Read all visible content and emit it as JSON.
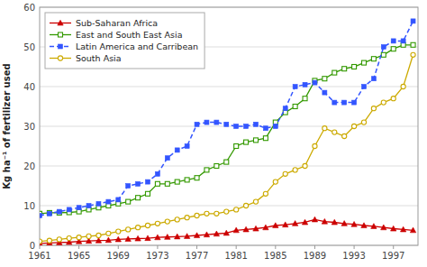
{
  "chart_data": {
    "type": "line",
    "y_label": "Kg ha⁻¹ of fertilizer used",
    "x": [
      1961,
      1962,
      1963,
      1964,
      1965,
      1966,
      1967,
      1968,
      1969,
      1970,
      1971,
      1972,
      1973,
      1974,
      1975,
      1976,
      1977,
      1978,
      1979,
      1980,
      1981,
      1982,
      1983,
      1984,
      1985,
      1986,
      1987,
      1988,
      1989,
      1990,
      1991,
      1992,
      1993,
      1994,
      1995,
      1996,
      1997,
      1998,
      1999
    ],
    "xlim": [
      1961,
      1999.5
    ],
    "xticks": [
      1961,
      1965,
      1969,
      1973,
      1977,
      1981,
      1985,
      1989,
      1993,
      1997
    ],
    "ylim": [
      0,
      60
    ],
    "yticks": [
      0,
      10,
      20,
      30,
      40,
      50,
      60
    ],
    "grid": true,
    "legend": "upper left",
    "series": [
      {
        "name": "Sub-Saharan Africa",
        "color": "#cc0000",
        "marker": "triangle",
        "line_style": "solid",
        "values": [
          0.5,
          0.6,
          0.7,
          0.8,
          1.0,
          1.1,
          1.2,
          1.3,
          1.5,
          1.6,
          1.7,
          1.8,
          2.0,
          2.1,
          2.2,
          2.3,
          2.5,
          2.7,
          2.9,
          3.1,
          3.8,
          4.0,
          4.2,
          4.5,
          5.0,
          5.2,
          5.5,
          5.8,
          6.5,
          6.0,
          5.8,
          5.5,
          5.3,
          5.0,
          4.8,
          4.5,
          4.2,
          4.0,
          3.8
        ]
      },
      {
        "name": "East and South East Asia",
        "color": "#339900",
        "marker": "square-open",
        "line_style": "solid",
        "values": [
          8.0,
          8.2,
          8.2,
          8.3,
          8.5,
          9.0,
          9.5,
          10.0,
          10.5,
          11.0,
          12.0,
          13.0,
          15.5,
          15.5,
          16.0,
          16.5,
          17.0,
          19.0,
          20.0,
          21.0,
          25.0,
          26.0,
          26.5,
          27.0,
          31.0,
          33.5,
          35.0,
          37.0,
          41.5,
          42.0,
          43.5,
          44.5,
          45.0,
          46.0,
          47.0,
          48.0,
          49.5,
          50.5,
          50.5
        ]
      },
      {
        "name": "Latin America and Carribean",
        "color": "#3355ff",
        "marker": "square",
        "line_style": "dashed",
        "values": [
          7.5,
          8.0,
          8.5,
          9.0,
          9.5,
          10.0,
          10.5,
          11.0,
          11.5,
          15.0,
          15.5,
          16.0,
          18.0,
          22.0,
          24.0,
          25.0,
          30.5,
          31.0,
          31.0,
          30.5,
          30.0,
          30.0,
          30.5,
          29.5,
          30.0,
          34.5,
          40.0,
          40.5,
          41.0,
          38.5,
          36.0,
          36.0,
          36.0,
          40.0,
          42.0,
          50.0,
          51.5,
          51.5,
          56.5
        ]
      },
      {
        "name": "South Asia",
        "color": "#ccaa00",
        "marker": "circle-open",
        "line_style": "solid",
        "values": [
          1.0,
          1.2,
          1.5,
          1.8,
          2.0,
          2.3,
          2.5,
          3.0,
          3.5,
          4.0,
          4.5,
          5.0,
          5.5,
          6.0,
          6.5,
          7.0,
          7.5,
          8.0,
          8.0,
          8.5,
          9.0,
          10.0,
          11.0,
          13.0,
          16.0,
          18.0,
          19.0,
          20.0,
          25.0,
          29.5,
          28.5,
          27.5,
          30.0,
          31.0,
          34.5,
          36.0,
          37.0,
          40.0,
          48.0
        ]
      }
    ]
  }
}
